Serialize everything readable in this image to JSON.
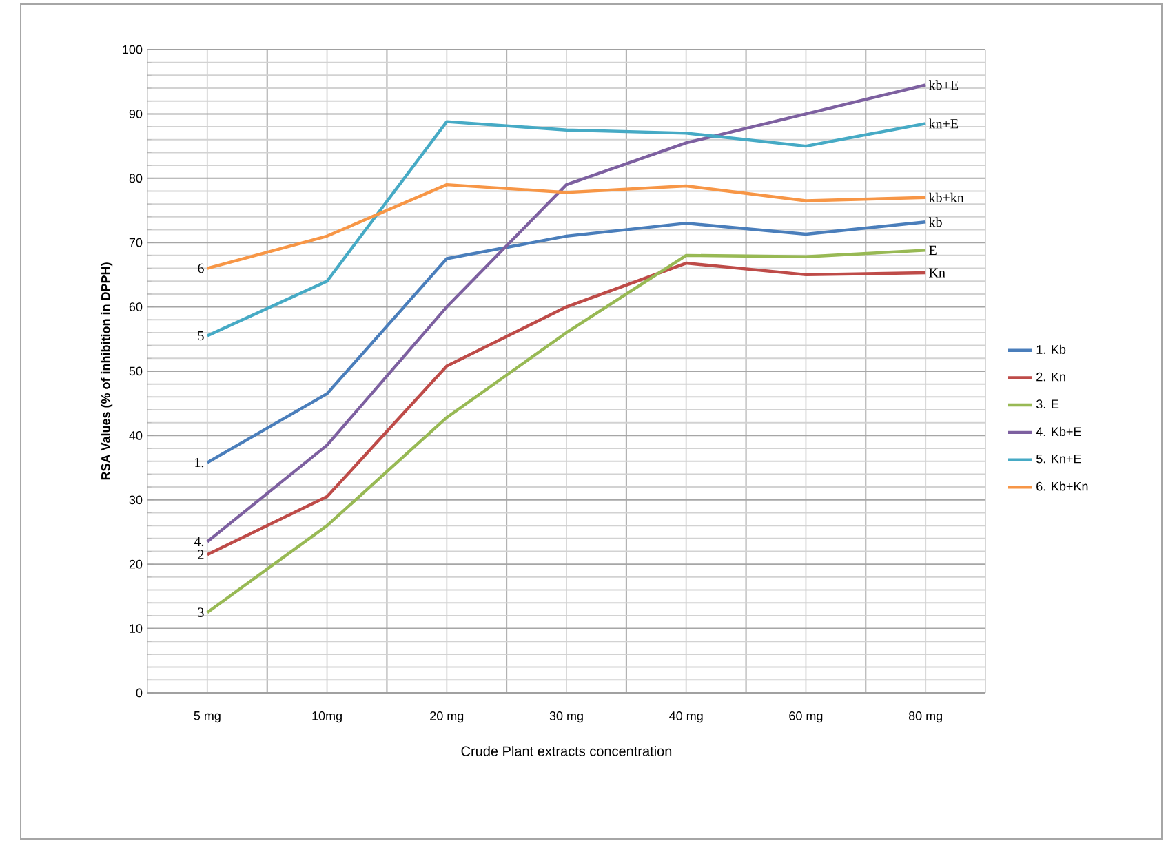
{
  "chart_data": {
    "type": "line",
    "xlabel": "Crude Plant extracts concentration",
    "ylabel": "RSA Values (% of inhibition in DPPH)",
    "categories": [
      "5 mg",
      "10mg",
      "20 mg",
      "30 mg",
      "40 mg",
      "60 mg",
      "80 mg"
    ],
    "ylim": [
      0,
      100
    ],
    "yticks": [
      0,
      10,
      20,
      30,
      40,
      50,
      60,
      70,
      80,
      90,
      100
    ],
    "grid": true,
    "legend": "right",
    "marker": "none",
    "line_style": "solid",
    "series": [
      {
        "name": "1. Kb",
        "color": "#4a7ebb",
        "values": [
          35.8,
          46.5,
          67.5,
          71,
          73,
          71.3,
          73.2
        ]
      },
      {
        "name": "2. Kn",
        "color": "#be4b48",
        "values": [
          21.5,
          30.5,
          50.8,
          60,
          66.8,
          65,
          65.3
        ]
      },
      {
        "name": "3. E",
        "color": "#98b954",
        "values": [
          12.5,
          26,
          42.8,
          56,
          68,
          67.8,
          68.8
        ]
      },
      {
        "name": "4. Kb+E",
        "color": "#7d60a0",
        "values": [
          23.5,
          38.5,
          60,
          79,
          85.5,
          90,
          94.5
        ]
      },
      {
        "name": "5. Kn+E",
        "color": "#46aac5",
        "values": [
          55.5,
          64,
          88.8,
          87.5,
          87,
          85,
          88.5
        ]
      },
      {
        "name": "6. Kb+Kn",
        "color": "#f79646",
        "values": [
          66,
          71,
          79,
          77.8,
          78.8,
          76.5,
          77
        ]
      }
    ],
    "annotations": [
      {
        "text": "1.",
        "x": "5 mg",
        "y": 35.8
      },
      {
        "text": "2",
        "x": "5 mg",
        "y": 21.5
      },
      {
        "text": "3",
        "x": "5 mg",
        "y": 12.5
      },
      {
        "text": "4.",
        "x": "5 mg",
        "y": 23.5
      },
      {
        "text": "5",
        "x": "5 mg",
        "y": 55.5
      },
      {
        "text": "6",
        "x": "5 mg",
        "y": 66
      },
      {
        "text": "kb+E",
        "x": "80 mg",
        "y": 94.5
      },
      {
        "text": "kn+E",
        "x": "80 mg",
        "y": 88.5
      },
      {
        "text": "kb+kn",
        "x": "80 mg",
        "y": 77
      },
      {
        "text": "kb",
        "x": "80 mg",
        "y": 73.2
      },
      {
        "text": "E",
        "x": "80 mg",
        "y": 68.8
      },
      {
        "text": "Kn",
        "x": "80 mg",
        "y": 65.3
      }
    ]
  }
}
